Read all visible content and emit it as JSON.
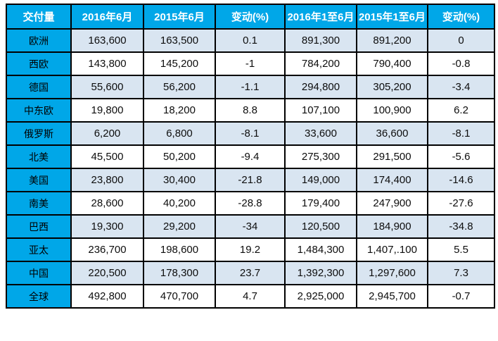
{
  "colors": {
    "header_bg": "#00a7e8",
    "label_column_bg": "#00a7e8",
    "banded_row_bg": "#d9e5f1",
    "plain_row_bg": "#ffffff",
    "grid_border": "#000000",
    "header_text": "#ffffff",
    "body_text": "#0d0d0d"
  },
  "chart_data": {
    "type": "table",
    "title": "交付量",
    "columns": [
      "交付量",
      "2016年6月",
      "2015年6月",
      "变动(%)",
      "2016年1至6月",
      "2015年1至6月",
      "变动(%)"
    ],
    "rows": [
      {
        "label": "欧洲",
        "values": [
          "163,600",
          "163,500",
          "0.1",
          "891,300",
          "891,200",
          "0"
        ]
      },
      {
        "label": "西欧",
        "values": [
          "143,800",
          "145,200",
          "-1",
          "784,200",
          "790,400",
          "-0.8"
        ]
      },
      {
        "label": "德国",
        "values": [
          "55,600",
          "56,200",
          "-1.1",
          "294,800",
          "305,200",
          "-3.4"
        ]
      },
      {
        "label": "中东欧",
        "values": [
          "19,800",
          "18,200",
          "8.8",
          "107,100",
          "100,900",
          "6.2"
        ]
      },
      {
        "label": "俄罗斯",
        "values": [
          "6,200",
          "6,800",
          "-8.1",
          "33,600",
          "36,600",
          "-8.1"
        ]
      },
      {
        "label": "北美",
        "values": [
          "45,500",
          "50,200",
          "-9.4",
          "275,300",
          "291,500",
          "-5.6"
        ]
      },
      {
        "label": "美国",
        "values": [
          "23,800",
          "30,400",
          "-21.8",
          "149,000",
          "174,400",
          "-14.6"
        ]
      },
      {
        "label": "南美",
        "values": [
          "28,600",
          "40,200",
          "-28.8",
          "179,400",
          "247,900",
          "-27.6"
        ]
      },
      {
        "label": "巴西",
        "values": [
          "19,300",
          "29,200",
          "-34",
          "120,500",
          "184,900",
          "-34.8"
        ]
      },
      {
        "label": "亚太",
        "values": [
          "236,700",
          "198,600",
          "19.2",
          "1,484,300",
          "1,407,.100",
          "5.5"
        ]
      },
      {
        "label": "中国",
        "values": [
          "220,500",
          "178,300",
          "23.7",
          "1,392,300",
          "1,297,600",
          "7.3"
        ]
      },
      {
        "label": "全球",
        "values": [
          "492,800",
          "470,700",
          "4.7",
          "2,925,000",
          "2,945,700",
          "-0.7"
        ]
      }
    ]
  }
}
